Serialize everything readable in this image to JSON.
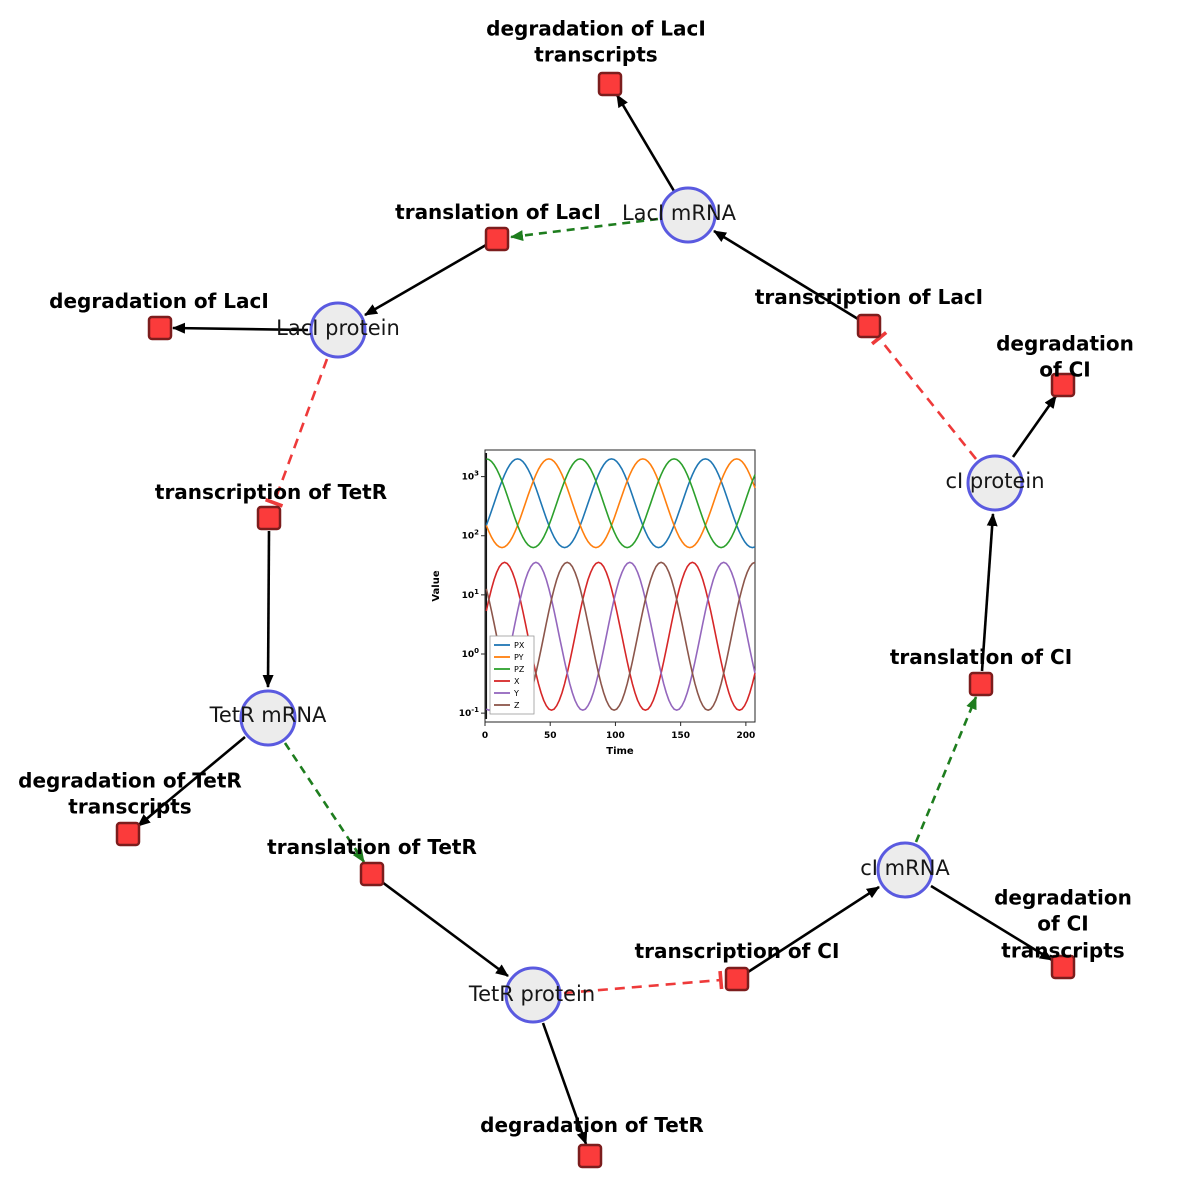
{
  "diagram": {
    "species": [
      {
        "id": "laci-mrna",
        "label": "LacI mRNA"
      },
      {
        "id": "laci-protein",
        "label": "LacI protein"
      },
      {
        "id": "tetr-mrna",
        "label": "TetR mRNA"
      },
      {
        "id": "tetr-protein",
        "label": "TetR protein"
      },
      {
        "id": "ci-mrna",
        "label": "cI mRNA"
      },
      {
        "id": "ci-protein",
        "label": "cI protein"
      }
    ],
    "reactions": [
      {
        "id": "deg-laci-transcripts",
        "label": "degradation of LacI\ntranscripts"
      },
      {
        "id": "translation-laci",
        "label": "translation of LacI"
      },
      {
        "id": "deg-laci",
        "label": "degradation of LacI"
      },
      {
        "id": "transcription-laci",
        "label": "transcription of LacI"
      },
      {
        "id": "deg-ci",
        "label": "degradation of CI"
      },
      {
        "id": "transcription-tetr",
        "label": "transcription of TetR"
      },
      {
        "id": "translation-ci",
        "label": "translation of CI"
      },
      {
        "id": "deg-tetr-transcripts",
        "label": "degradation of TetR\ntranscripts"
      },
      {
        "id": "translation-tetr",
        "label": "translation of TetR"
      },
      {
        "id": "transcription-ci",
        "label": "transcription of CI"
      },
      {
        "id": "deg-ci-transcripts",
        "label": "degradation of CI\ntranscripts"
      },
      {
        "id": "deg-tetr",
        "label": "degradation of TetR"
      }
    ],
    "colors": {
      "species_fill": "#ececec",
      "species_border": "#5a5ae0",
      "reaction_fill": "#fb3b3b",
      "reaction_border": "#7c1d1d",
      "edge": "#000000",
      "modifier_edge": "#1e7d1e",
      "inhibition_edge": "#ee3a3a"
    }
  },
  "chart_data": {
    "type": "line",
    "title": "",
    "xlabel": "Time",
    "ylabel": "Value",
    "x_range": [
      0,
      207
    ],
    "x_ticks": [
      0,
      50,
      100,
      150,
      200
    ],
    "y_scale": "log",
    "y_ticks_exponents": [
      -1,
      0,
      1,
      2,
      3
    ],
    "y_log_range": [
      -1.15,
      3.45
    ],
    "grid": false,
    "legend_position": "lower left",
    "initial_transient_t": 1,
    "period": 72,
    "series": [
      {
        "name": "PX",
        "color": "#1f77b4",
        "log_mean": 2.55,
        "log_amp": 0.75,
        "peak_t": 25
      },
      {
        "name": "PY",
        "color": "#ff7f0e",
        "log_mean": 2.55,
        "log_amp": 0.75,
        "peak_t": 49
      },
      {
        "name": "PZ",
        "color": "#2ca02c",
        "log_mean": 2.55,
        "log_amp": 0.75,
        "peak_t": 73
      },
      {
        "name": "X",
        "color": "#d62728",
        "log_mean": 0.3,
        "log_amp": 1.25,
        "peak_t": 15
      },
      {
        "name": "Y",
        "color": "#9467bd",
        "log_mean": 0.3,
        "log_amp": 1.25,
        "peak_t": 39
      },
      {
        "name": "Z",
        "color": "#8c564b",
        "log_mean": 0.3,
        "log_amp": 1.25,
        "peak_t": 63
      }
    ]
  }
}
